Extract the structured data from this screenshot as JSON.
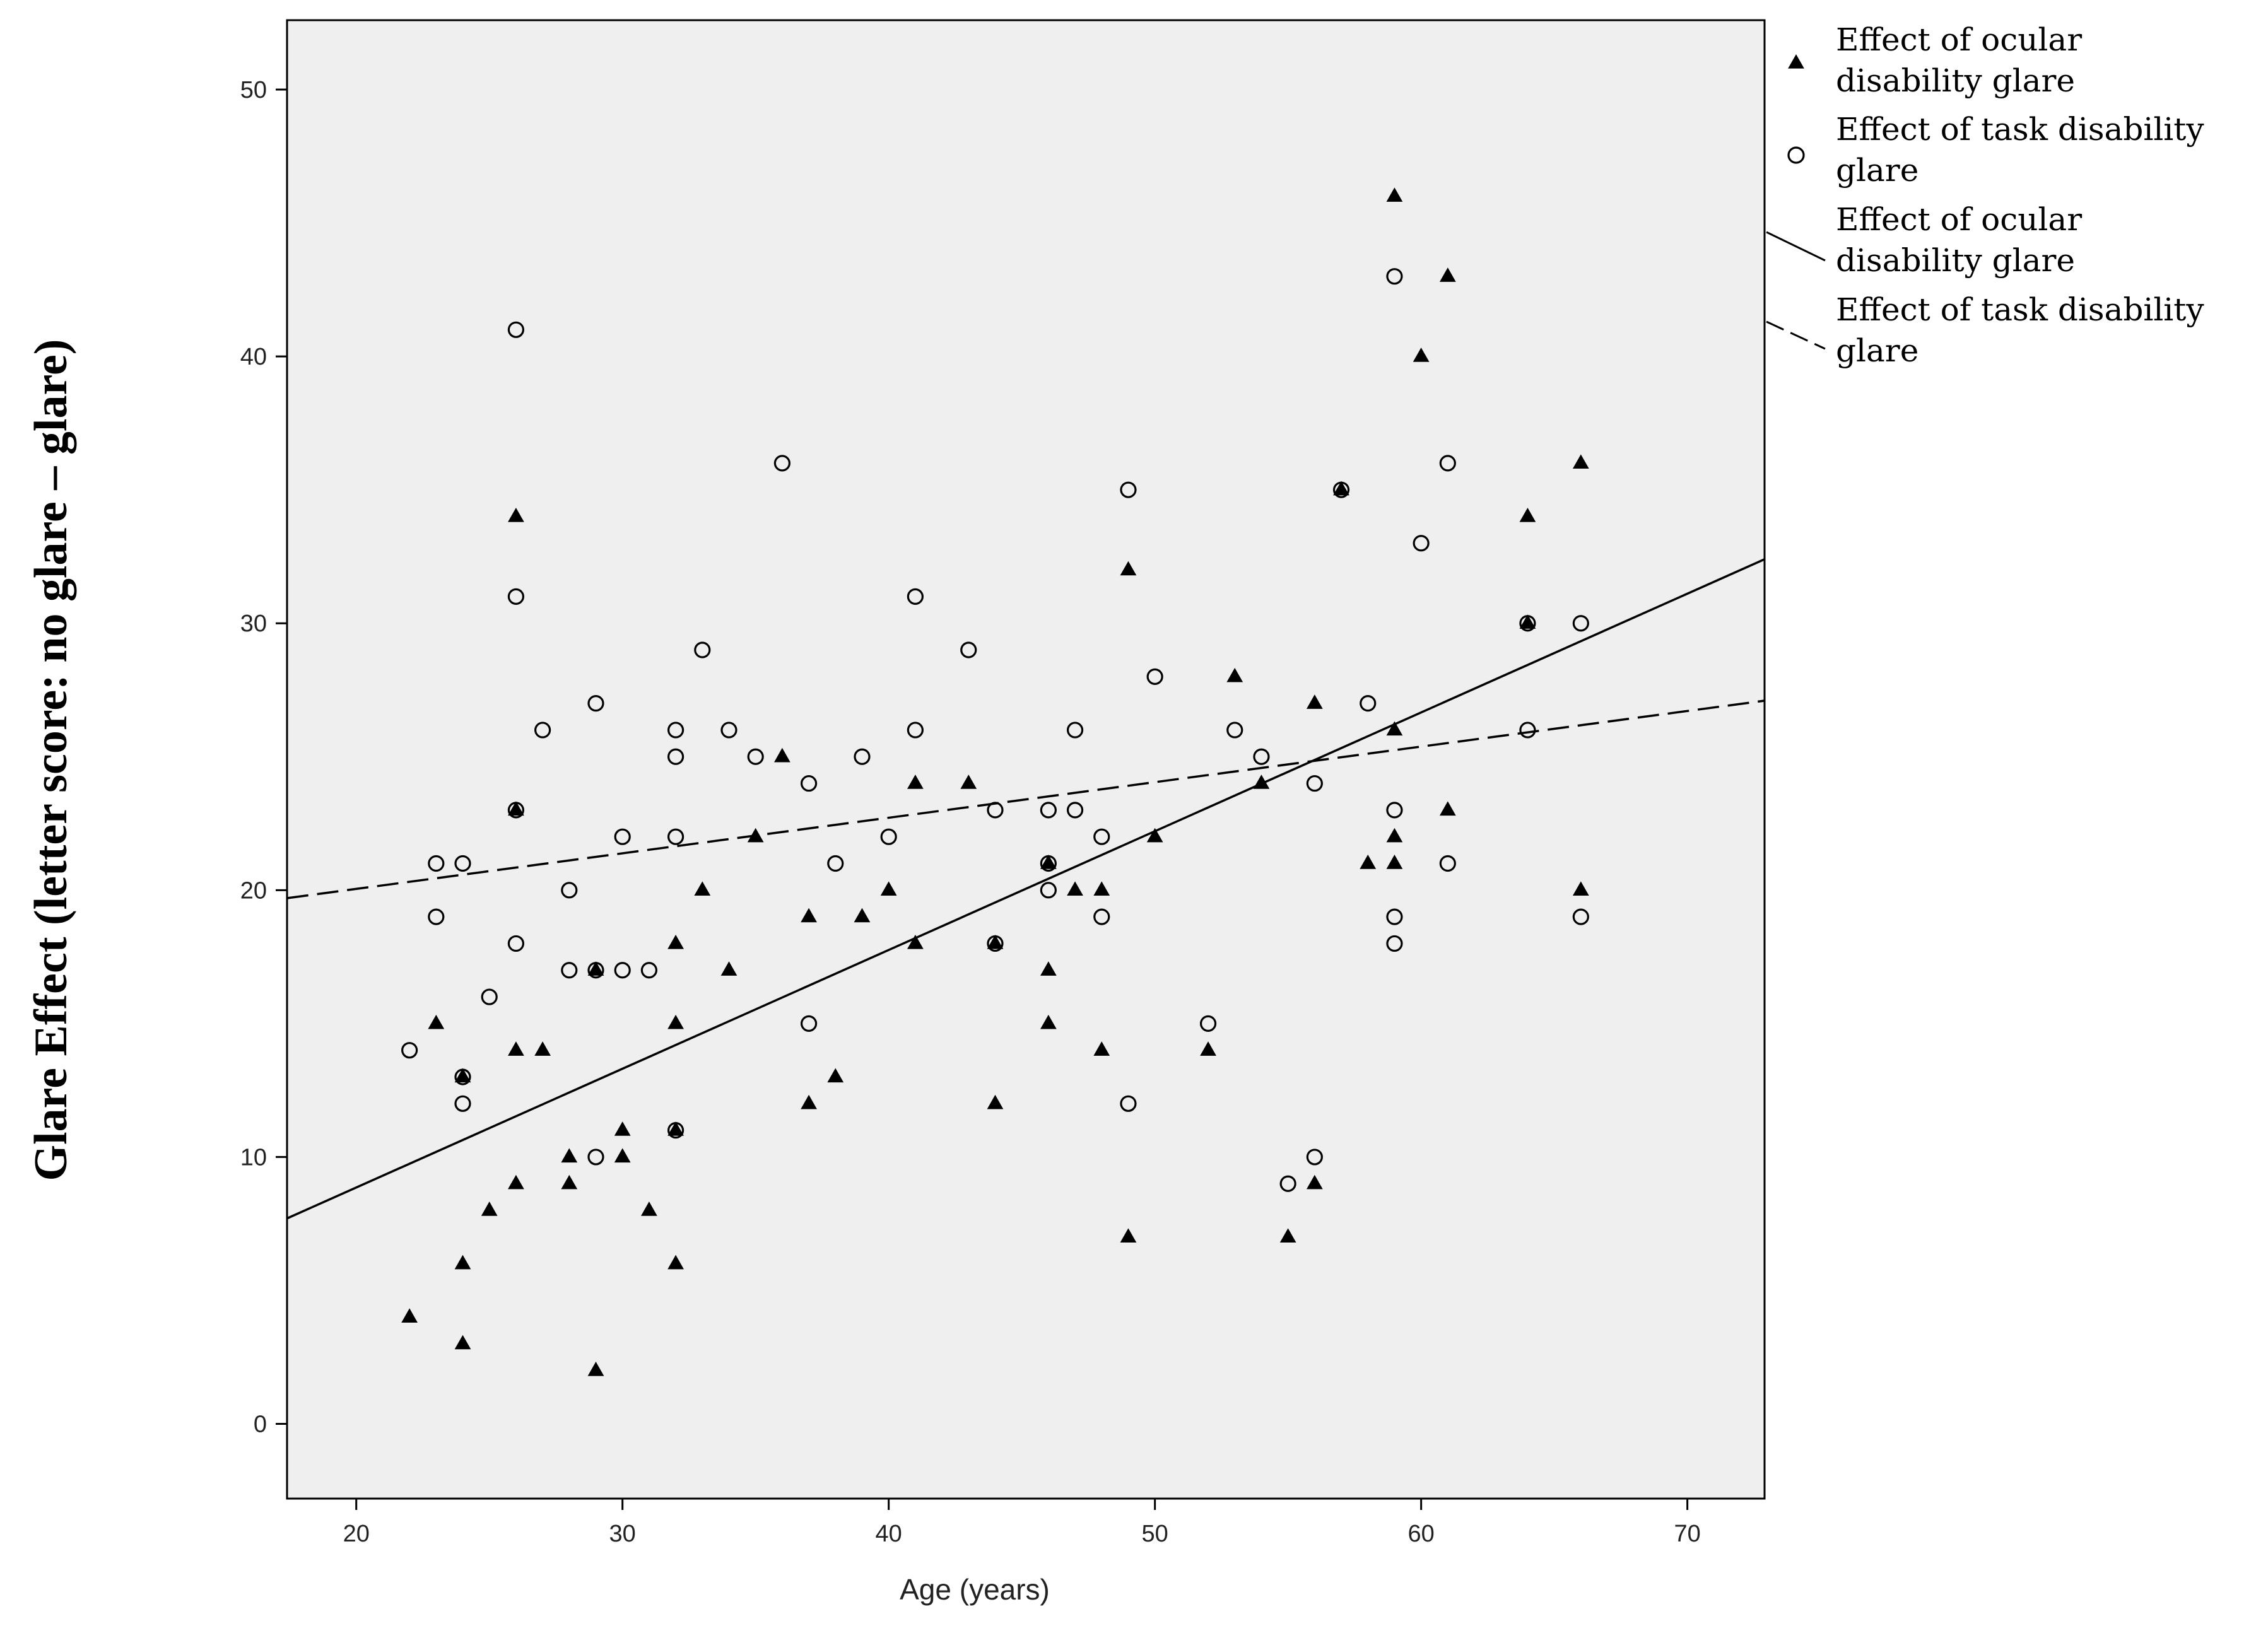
{
  "chart_data": {
    "type": "scatter",
    "xlabel": "Age (years)",
    "ylabel": "Glare Effect (letter score: no glare – glare)",
    "xlim": [
      17.4,
      72.9
    ],
    "ylim": [
      -2.8,
      52.6
    ],
    "x_ticks": [
      20,
      30,
      40,
      50,
      60,
      70
    ],
    "y_ticks": [
      0,
      10,
      20,
      30,
      40,
      50
    ],
    "grid": false,
    "legend_position": "right, outside plot",
    "plot_background": "#efefef",
    "series": [
      {
        "name": "Effect of ocular disability glare",
        "marker": "filled-triangle",
        "color": "#000000",
        "points": [
          [
            22,
            4
          ],
          [
            23,
            15
          ],
          [
            24,
            13
          ],
          [
            24,
            6
          ],
          [
            24,
            3
          ],
          [
            25,
            8
          ],
          [
            26,
            34
          ],
          [
            26,
            23
          ],
          [
            26,
            14
          ],
          [
            26,
            9
          ],
          [
            27,
            14
          ],
          [
            28,
            10
          ],
          [
            28,
            9
          ],
          [
            29,
            17
          ],
          [
            29,
            2
          ],
          [
            30,
            11
          ],
          [
            30,
            10
          ],
          [
            31,
            8
          ],
          [
            32,
            18
          ],
          [
            32,
            15
          ],
          [
            32,
            11
          ],
          [
            32,
            6
          ],
          [
            33,
            20
          ],
          [
            34,
            17
          ],
          [
            35,
            22
          ],
          [
            36,
            25
          ],
          [
            37,
            19
          ],
          [
            37,
            12
          ],
          [
            38,
            13
          ],
          [
            39,
            19
          ],
          [
            40,
            20
          ],
          [
            41,
            24
          ],
          [
            41,
            18
          ],
          [
            43,
            24
          ],
          [
            44,
            18
          ],
          [
            44,
            12
          ],
          [
            46,
            21
          ],
          [
            46,
            17
          ],
          [
            46,
            15
          ],
          [
            47,
            20
          ],
          [
            48,
            20
          ],
          [
            48,
            14
          ],
          [
            49,
            32
          ],
          [
            49,
            7
          ],
          [
            50,
            22
          ],
          [
            52,
            14
          ],
          [
            53,
            28
          ],
          [
            54,
            24
          ],
          [
            55,
            7
          ],
          [
            56,
            27
          ],
          [
            56,
            9
          ],
          [
            57,
            35
          ],
          [
            58,
            21
          ],
          [
            59,
            46
          ],
          [
            59,
            26
          ],
          [
            59,
            22
          ],
          [
            59,
            21
          ],
          [
            60,
            40
          ],
          [
            61,
            43
          ],
          [
            61,
            23
          ],
          [
            64,
            34
          ],
          [
            64,
            30
          ],
          [
            66,
            36
          ],
          [
            66,
            20
          ]
        ]
      },
      {
        "name": "Effect of task disability glare",
        "marker": "open-circle",
        "color": "#000000",
        "points": [
          [
            22,
            14
          ],
          [
            23,
            21
          ],
          [
            23,
            19
          ],
          [
            24,
            21
          ],
          [
            24,
            13
          ],
          [
            24,
            12
          ],
          [
            25,
            16
          ],
          [
            26,
            41
          ],
          [
            26,
            31
          ],
          [
            26,
            23
          ],
          [
            26,
            18
          ],
          [
            27,
            26
          ],
          [
            28,
            20
          ],
          [
            28,
            17
          ],
          [
            29,
            27
          ],
          [
            29,
            17
          ],
          [
            29,
            10
          ],
          [
            30,
            22
          ],
          [
            30,
            17
          ],
          [
            31,
            17
          ],
          [
            32,
            26
          ],
          [
            32,
            25
          ],
          [
            32,
            22
          ],
          [
            32,
            11
          ],
          [
            33,
            29
          ],
          [
            34,
            26
          ],
          [
            35,
            25
          ],
          [
            36,
            36
          ],
          [
            37,
            24
          ],
          [
            37,
            15
          ],
          [
            38,
            21
          ],
          [
            39,
            25
          ],
          [
            40,
            22
          ],
          [
            41,
            31
          ],
          [
            41,
            26
          ],
          [
            43,
            29
          ],
          [
            44,
            23
          ],
          [
            44,
            18
          ],
          [
            46,
            23
          ],
          [
            46,
            21
          ],
          [
            46,
            20
          ],
          [
            47,
            26
          ],
          [
            47,
            23
          ],
          [
            48,
            22
          ],
          [
            48,
            19
          ],
          [
            49,
            35
          ],
          [
            49,
            12
          ],
          [
            50,
            28
          ],
          [
            52,
            15
          ],
          [
            53,
            26
          ],
          [
            54,
            25
          ],
          [
            55,
            9
          ],
          [
            56,
            24
          ],
          [
            56,
            10
          ],
          [
            57,
            35
          ],
          [
            58,
            27
          ],
          [
            59,
            43
          ],
          [
            59,
            23
          ],
          [
            59,
            19
          ],
          [
            59,
            18
          ],
          [
            60,
            33
          ],
          [
            61,
            36
          ],
          [
            61,
            21
          ],
          [
            64,
            30
          ],
          [
            64,
            26
          ],
          [
            66,
            30
          ],
          [
            66,
            19
          ]
        ]
      }
    ],
    "fit_lines": [
      {
        "name": "Effect of ocular disability glare",
        "style": "solid",
        "color": "#000000",
        "x": [
          17.4,
          72.9
        ],
        "y": [
          7.7,
          32.4
        ]
      },
      {
        "name": "Effect of task disability glare",
        "style": "dashed",
        "color": "#000000",
        "x": [
          17.4,
          72.9
        ],
        "y": [
          19.7,
          27.1
        ]
      }
    ],
    "legend": [
      {
        "label": "Effect of ocular disability glare",
        "lines": [
          "Effect of ocular",
          "disability glare"
        ],
        "symbol": "filled-triangle"
      },
      {
        "label": "Effect of task disability glare",
        "lines": [
          "Effect of task disability",
          "glare"
        ],
        "symbol": "open-circle"
      },
      {
        "label": "Effect of ocular disability glare",
        "lines": [
          "Effect of ocular",
          "disability glare"
        ],
        "symbol": "solid-line"
      },
      {
        "label": "Effect of task disability glare",
        "lines": [
          "Effect of task disability",
          "glare"
        ],
        "symbol": "dashed-line"
      }
    ]
  }
}
